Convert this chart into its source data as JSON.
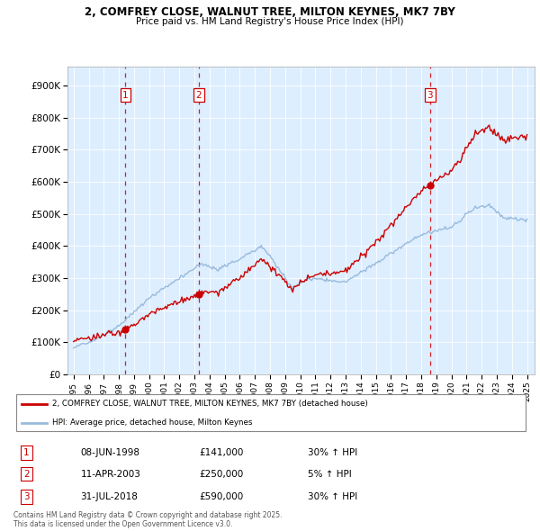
{
  "title_line1": "2, COMFREY CLOSE, WALNUT TREE, MILTON KEYNES, MK7 7BY",
  "title_line2": "Price paid vs. HM Land Registry's House Price Index (HPI)",
  "ytick_labels": [
    "£0",
    "£100K",
    "£200K",
    "£300K",
    "£400K",
    "£500K",
    "£600K",
    "£700K",
    "£800K",
    "£900K"
  ],
  "yticks": [
    0,
    100000,
    200000,
    300000,
    400000,
    500000,
    600000,
    700000,
    800000,
    900000
  ],
  "xlim_start": 1994.6,
  "xlim_end": 2025.5,
  "ylim_min": 0,
  "ylim_max": 960000,
  "sale_dates": [
    1998.44,
    2003.28,
    2018.58
  ],
  "sale_prices": [
    141000,
    250000,
    590000
  ],
  "sale_labels": [
    "1",
    "2",
    "3"
  ],
  "red_line_color": "#cc0000",
  "blue_line_color": "#99bbdd",
  "dashed_line_color": "#cc0000",
  "grid_color": "#ccddee",
  "bg_chart_color": "#ddeeff",
  "background_color": "#ffffff",
  "legend_label_red": "2, COMFREY CLOSE, WALNUT TREE, MILTON KEYNES, MK7 7BY (detached house)",
  "legend_label_blue": "HPI: Average price, detached house, Milton Keynes",
  "table_rows": [
    [
      "1",
      "08-JUN-1998",
      "£141,000",
      "30% ↑ HPI"
    ],
    [
      "2",
      "11-APR-2003",
      "£250,000",
      "5% ↑ HPI"
    ],
    [
      "3",
      "31-JUL-2018",
      "£590,000",
      "30% ↑ HPI"
    ]
  ],
  "footnote": "Contains HM Land Registry data © Crown copyright and database right 2025.\nThis data is licensed under the Open Government Licence v3.0."
}
